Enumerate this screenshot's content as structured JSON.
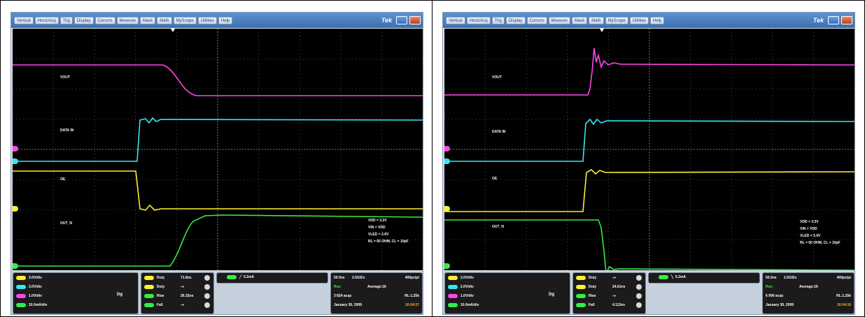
{
  "menu": [
    "Vertical",
    "Horiz/Acq",
    "Trig",
    "Display",
    "Cursors",
    "Measure",
    "Mask",
    "Math",
    "MyScope",
    "Utilities",
    "Help"
  ],
  "brand": "Tek",
  "colors": {
    "ch1": "#ffee33",
    "ch2": "#33e8f2",
    "ch3": "#ff44ee",
    "ch4": "#33ee44",
    "grid": "#7a7a7a"
  },
  "panels": [
    {
      "labels": {
        "vout": "VOUT",
        "data_in": "DATA IN",
        "oe": "OE",
        "out_n": "OUT_N"
      },
      "conditions": [
        "VDD = 3.3V",
        "VIN = VDD",
        "VLED = 3.6V",
        "RL = 60 OHM, CL = 10pF"
      ],
      "channels": [
        {
          "scale": "2.0V/div",
          "color": "#ffee33"
        },
        {
          "scale": "2.0V/div",
          "color": "#33e8f2"
        },
        {
          "scale": "1.0V/div",
          "color": "#ff44ee"
        },
        {
          "scale": "10.0mA/div",
          "color": "#33ee44"
        }
      ],
      "dg": "Dg",
      "measurements": [
        {
          "name": "Duty",
          "value": "71.8ns",
          "color": "#ffee33"
        },
        {
          "name": "Duty",
          "value": "-∞",
          "color": "#ffee33"
        },
        {
          "name": "Rise",
          "value": "26.32ns",
          "color": "#33ee44"
        },
        {
          "name": "Fall",
          "value": "-∞",
          "color": "#33ee44"
        }
      ],
      "trigger": {
        "level": "5.2mA",
        "color": "#33ee44"
      },
      "acq": {
        "timebase": "50.0ns",
        "rate": "2.5GS/s",
        "resolution": "400ps/pt",
        "state": "Run",
        "mode": "Average:16",
        "acqs": "3 824 acqs",
        "record": "RL:1.25k",
        "date": "January 30, 2009",
        "time": "16:04:57"
      }
    },
    {
      "labels": {
        "vout": "VOUT",
        "data_in": "DATA IN",
        "oe": "OE",
        "out_n": "OUT_N"
      },
      "conditions": [
        "VDD = 3.3V",
        "VIN = VDD",
        "VLED = 3.6V",
        "RL = 60 OHM, CL = 10pF"
      ],
      "channels": [
        {
          "scale": "2.0V/div",
          "color": "#ffee33"
        },
        {
          "scale": "2.0V/div",
          "color": "#33e8f2"
        },
        {
          "scale": "1.0V/div",
          "color": "#ff44ee"
        },
        {
          "scale": "10.0mA/div",
          "color": "#33ee44"
        }
      ],
      "dg": "Dg",
      "measurements": [
        {
          "name": "Duty",
          "value": "-∞",
          "color": "#ffee33"
        },
        {
          "name": "Duty",
          "value": "24.61ns",
          "color": "#ffee33"
        },
        {
          "name": "Rise",
          "value": "-∞",
          "color": "#33ee44"
        },
        {
          "name": "Fall",
          "value": "4.112ns",
          "color": "#33ee44"
        }
      ],
      "trigger": {
        "level": "5.2mA",
        "color": "#33ee44"
      },
      "acq": {
        "timebase": "50.0ns",
        "rate": "2.5GS/s",
        "resolution": "400ps/pt",
        "state": "Run",
        "mode": "Average:16",
        "acqs": "6 990 acqs",
        "record": "RL:1.25k",
        "date": "January 30, 2009",
        "time": "16:04:16"
      }
    }
  ]
}
